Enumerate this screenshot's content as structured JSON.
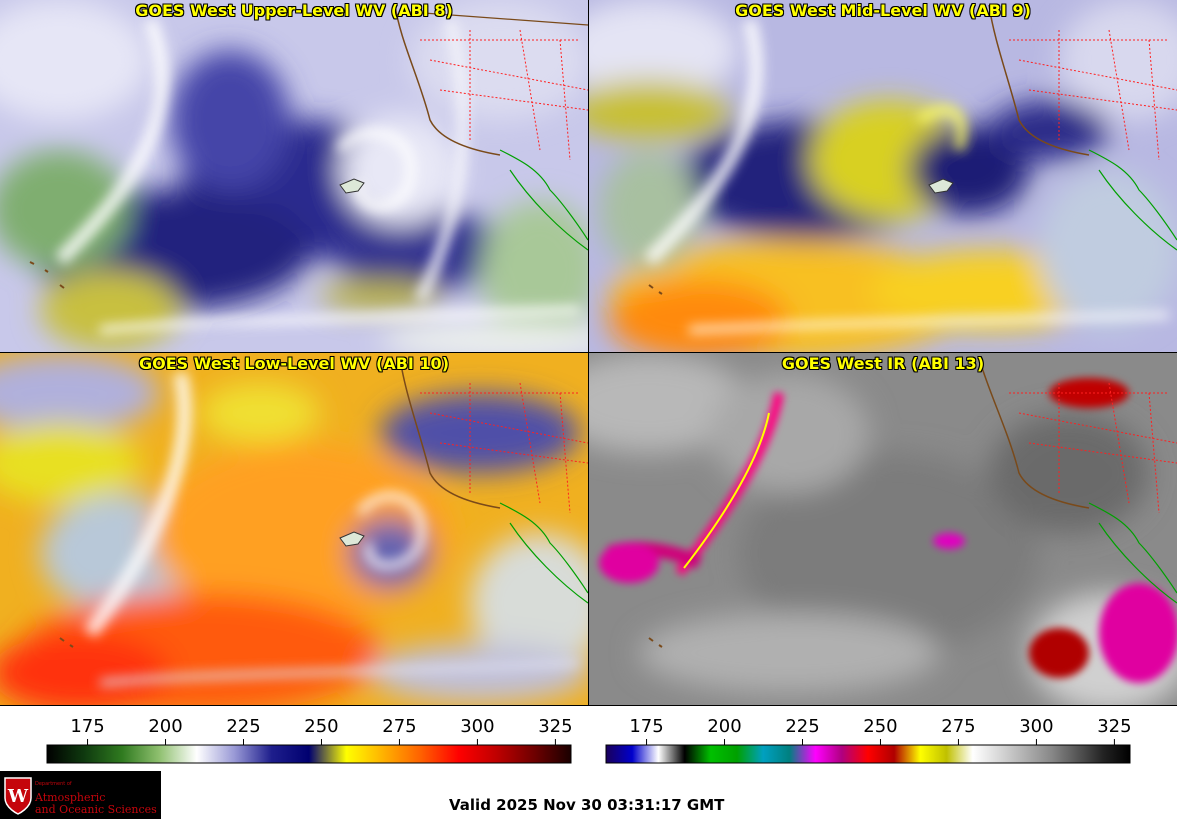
{
  "panels": [
    {
      "title": "GOES West Upper-Level WV (ABI 8)"
    },
    {
      "title": "GOES West Mid-Level WV (ABI 9)"
    },
    {
      "title": "GOES West Low-Level WV (ABI 10)"
    },
    {
      "title": "GOES West IR (ABI 13)"
    }
  ],
  "wv_scale": {
    "ticks": [
      "175",
      "200",
      "225",
      "250",
      "275",
      "300",
      "325"
    ],
    "colors": [
      "#000000",
      "#0f3a0f",
      "#2f7a1f",
      "#8fc06f",
      "#ffffff",
      "#9a9ad6",
      "#1e1e8c",
      "#000070",
      "#ffff00",
      "#ffb000",
      "#ff6000",
      "#ff0000",
      "#c00000",
      "#700000",
      "#1a0000"
    ]
  },
  "ir_scale": {
    "ticks": [
      "175",
      "200",
      "225",
      "250",
      "275",
      "300",
      "325"
    ],
    "colors": [
      "#1a005a",
      "#0000cc",
      "#ffffff",
      "#000000",
      "#00c000",
      "#00a000",
      "#00a0c0",
      "#008080",
      "#ff00ff",
      "#b00080",
      "#ff0000",
      "#b00000",
      "#ffff00",
      "#c0c000",
      "#ffffff",
      "#d8d8d8",
      "#b0b0b0",
      "#888888",
      "#555555",
      "#222222",
      "#000000"
    ]
  },
  "logo": {
    "dept": "Department of",
    "line1": "Atmospheric",
    "line2": "and Oceanic Sciences"
  },
  "valid_time": "Valid 2025 Nov 30 03:31:17 GMT"
}
